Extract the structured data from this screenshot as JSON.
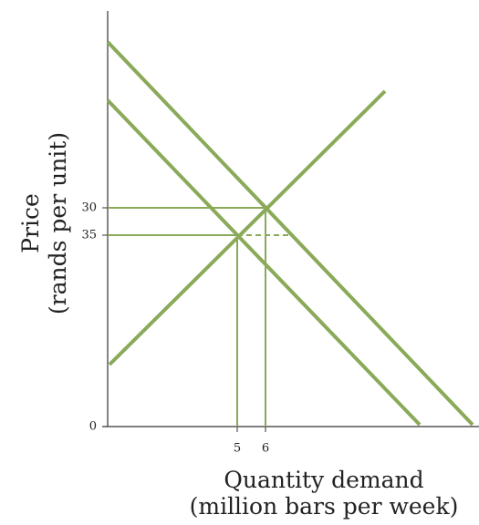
{
  "y_axis": {
    "title": "Price",
    "subtitle": "(rands per unit)",
    "ticks": [
      "30",
      "35",
      "0"
    ]
  },
  "x_axis": {
    "title": "Quantity demand",
    "subtitle": "(million bars per week)",
    "ticks": [
      "5",
      "6"
    ]
  }
}
